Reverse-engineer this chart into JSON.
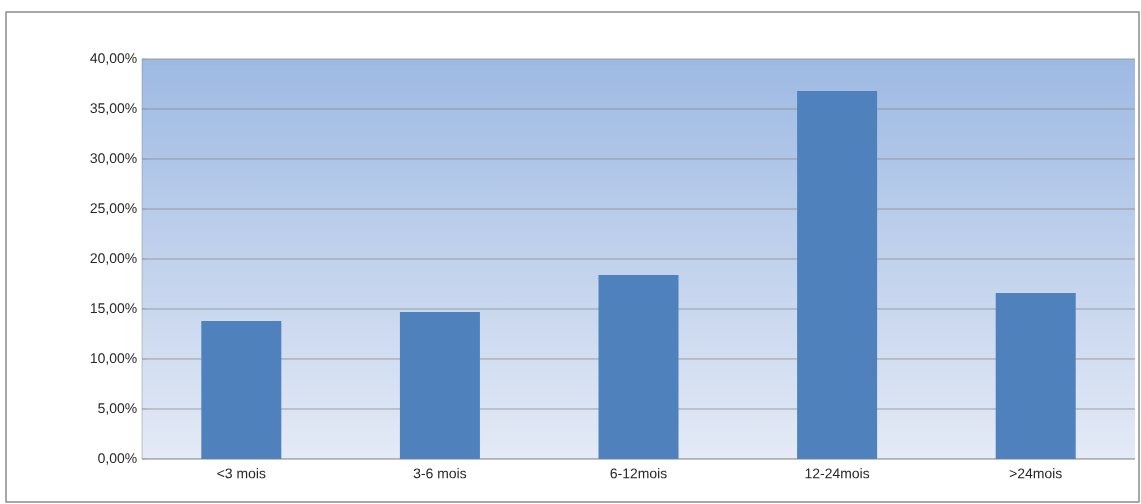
{
  "chart_data": {
    "type": "bar",
    "categories": [
      "<3 mois",
      "3-6 mois",
      "6-12mois",
      "12-24mois",
      ">24mois"
    ],
    "values": [
      13.8,
      14.7,
      18.4,
      36.8,
      16.6
    ],
    "color": "#4f81bd",
    "ylim": [
      0,
      40
    ],
    "yticks": [
      {
        "value": 0,
        "label": "0,00%"
      },
      {
        "value": 5,
        "label": "5,00%"
      },
      {
        "value": 10,
        "label": "10,00%"
      },
      {
        "value": 15,
        "label": "15,00%"
      },
      {
        "value": 20,
        "label": "20,00%"
      },
      {
        "value": 25,
        "label": "25,00%"
      },
      {
        "value": 30,
        "label": "30,00%"
      },
      {
        "value": 35,
        "label": "35,00%"
      },
      {
        "value": 40,
        "label": "40,00%"
      }
    ],
    "grid": "y"
  }
}
